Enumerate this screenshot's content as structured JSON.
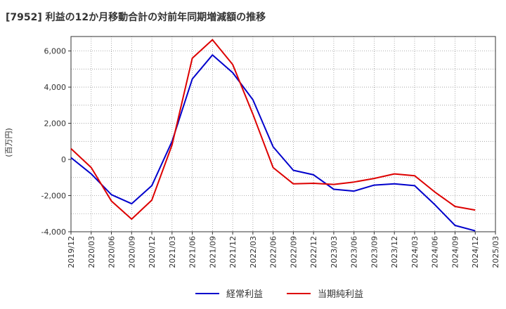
{
  "chart_data": {
    "type": "line",
    "title": "[7952]  利益の12か月移動合計の対前年同期増減額の推移",
    "ylabel": "(百万円)",
    "xlabel": "",
    "ylim": [
      -4000,
      6800
    ],
    "yticks": [
      -4000,
      -2000,
      0,
      2000,
      4000,
      6000
    ],
    "ytick_labels": [
      "-4,000",
      "-2,000",
      "0",
      "2,000",
      "4,000",
      "6,000"
    ],
    "categories": [
      "2019/12",
      "2020/03",
      "2020/06",
      "2020/09",
      "2020/12",
      "2021/03",
      "2021/06",
      "2021/09",
      "2021/12",
      "2022/03",
      "2022/06",
      "2022/09",
      "2022/12",
      "2023/03",
      "2023/06",
      "2023/09",
      "2023/12",
      "2024/03",
      "2024/06",
      "2024/09",
      "2024/12",
      "2025/03"
    ],
    "grid": true,
    "series": [
      {
        "name": "経常利益",
        "color": "#0000cc",
        "values": [
          100,
          -800,
          -1950,
          -2450,
          -1450,
          1000,
          4450,
          5780,
          4800,
          3300,
          700,
          -600,
          -850,
          -1650,
          -1750,
          -1420,
          -1350,
          -1450,
          -2500,
          -3650,
          -3950,
          null
        ]
      },
      {
        "name": "当期純利益",
        "color": "#dd0000",
        "values": [
          600,
          -450,
          -2300,
          -3300,
          -2250,
          800,
          5600,
          6620,
          5250,
          2500,
          -450,
          -1350,
          -1320,
          -1380,
          -1250,
          -1050,
          -800,
          -900,
          -1800,
          -2600,
          -2800,
          null
        ]
      }
    ]
  }
}
